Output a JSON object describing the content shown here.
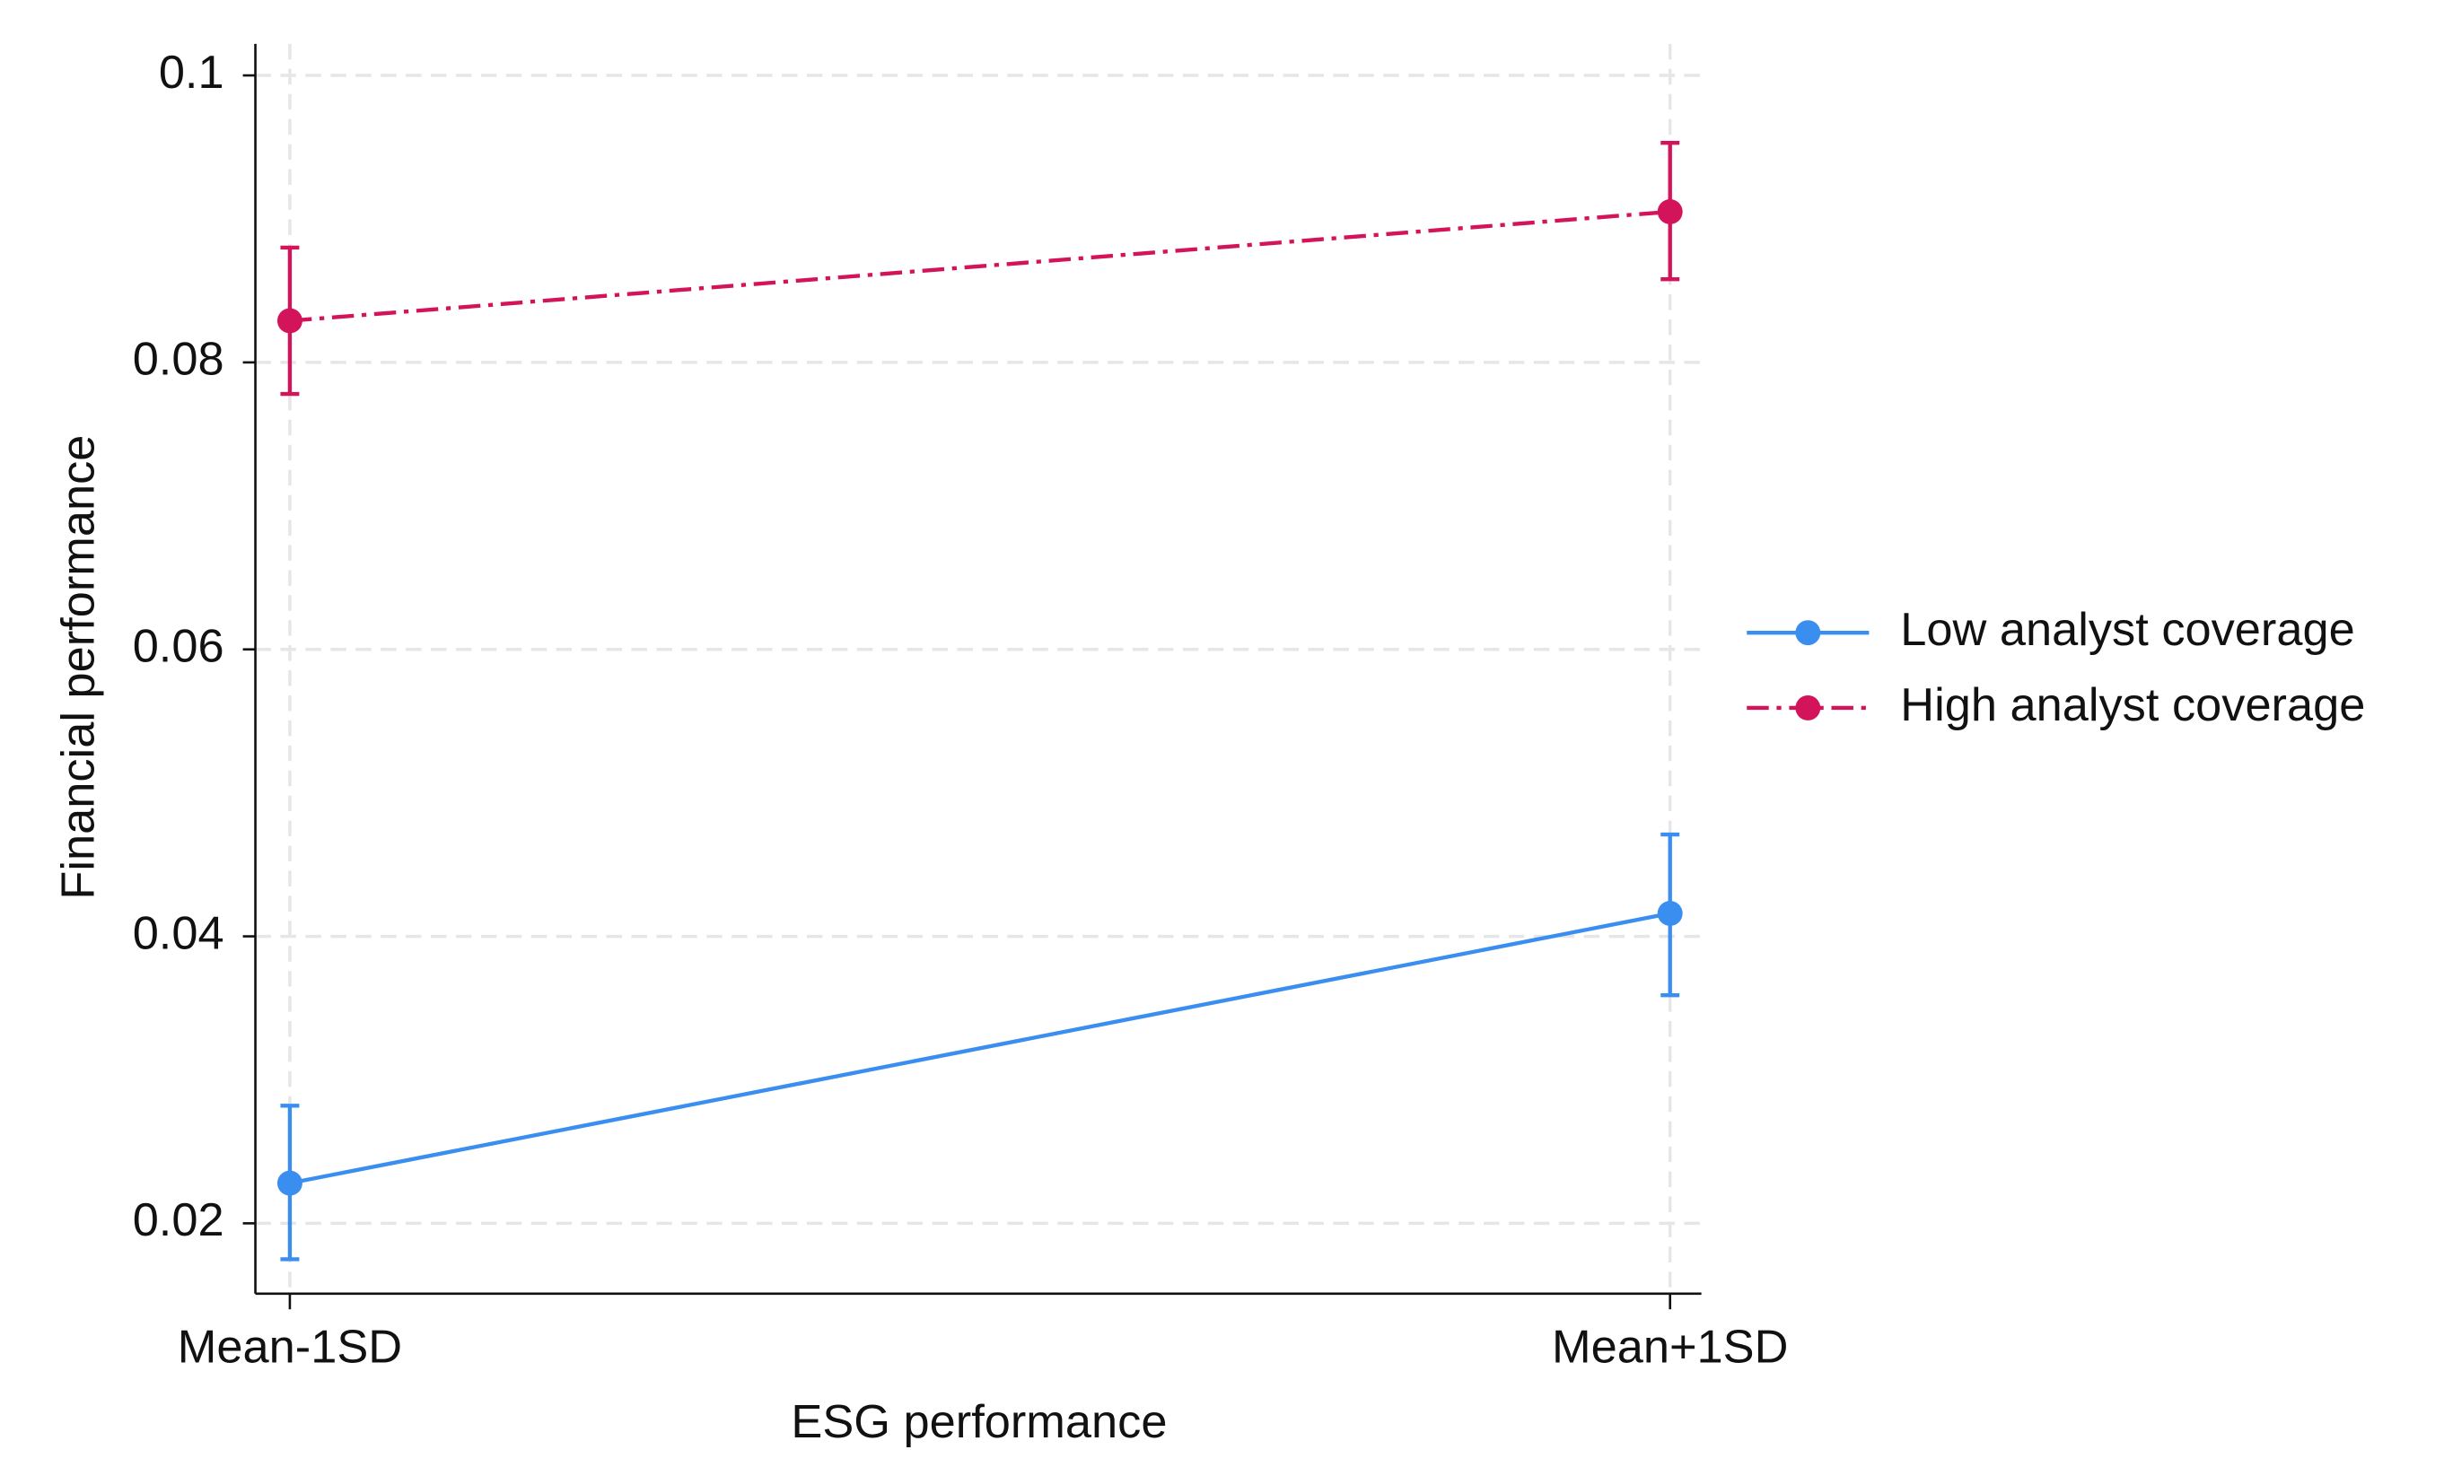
{
  "chart_data": {
    "type": "line",
    "x_label": "ESG performance",
    "y_label": "Financial performance",
    "categories": [
      "Mean-1SD",
      "Mean+1SD"
    ],
    "series": [
      {
        "name": "Low analyst coverage",
        "color": "#3a8ef0",
        "linestyle": "solid",
        "values": [
          0.0228,
          0.0416
        ],
        "lower": [
          0.0175,
          0.0359
        ],
        "upper": [
          0.0282,
          0.0471
        ]
      },
      {
        "name": "High analyst coverage",
        "color": "#d4145a",
        "linestyle": "dashdot",
        "values": [
          0.0829,
          0.0905
        ],
        "lower": [
          0.0778,
          0.0858
        ],
        "upper": [
          0.088,
          0.0953
        ]
      }
    ],
    "ylim": [
      0.0151,
      0.1022
    ],
    "yticks": [
      0.02,
      0.04,
      0.06,
      0.08,
      0.1
    ],
    "grid": true,
    "legend": "right"
  }
}
